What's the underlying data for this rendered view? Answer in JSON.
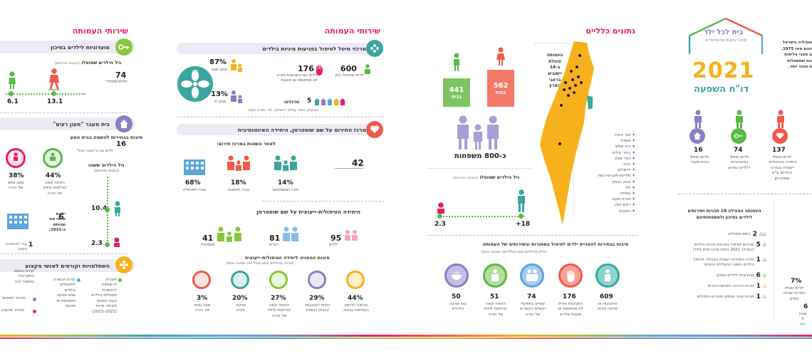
{
  "colors": {
    "pink": "#e91e63",
    "orange": "#f6b11c",
    "green": "#5aba47",
    "purple": "#8a7fc6",
    "blue": "#5aa6d8",
    "red": "#f05a4a",
    "teal": "#3aa6a0"
  },
  "panel1": {
    "header": "שירותי העמותה",
    "adopt": {
      "title": "מועדוניות לילדים בסיכון",
      "age_title": "גיל הילדים שטופלו",
      "age_note": "(בשנים וחודשים)",
      "kids_value": "74",
      "kids_label": "ילדים טופלו",
      "ages": [
        "6.1",
        "13.1"
      ]
    },
    "transit": {
      "title": "בית מעבר \"מעון רעים\"",
      "reasons_title": "סיבות בבחירות להשמה בבית המע",
      "sixteen": "16",
      "sixteen_label": "ילדים שהו ב\"מעון רעים\"",
      "pcts": [
        {
          "v": "38%",
          "l": "מצב נפשי\nשל הורה"
        },
        {
          "v": "44%",
          "l": "הזנחה קשה\n/אלימות פיזית\nשל הורה"
        }
      ],
      "age_title": "גיל הילדים ששהו",
      "age_note": "(בשנים וחודשים)",
      "age_a": "10.4",
      "age_b": "2.3",
      "six": "6",
      "six_label": "ילדים\nסיימו את\nשהותם\nב-2021:",
      "one": "1",
      "one_label": "עבר למשפחת\nאומנה"
    },
    "courses": {
      "title": "השתלמויות וקורסים לאנשי מקצוע",
      "items": [
        "תוכנית\nדו-שנתית\nלהכשרת\nמטפלים בילדים\nוגעת בנפגעי\nתקיפה מינית\n(2021–2023)",
        "קורס הכשרה\nלמטפלים\nבילדים\nשחוו פגיעה\nמאוטמת או\nמוגעת",
        "קורס בנושא\nהתערבות\nבמשבר (הכ"
      ],
      "side": [
        "תכנית 'תפסים'",
        "תכנית 'מהציגו"
      ]
    }
  },
  "panel2": {
    "header": "שירותי העמותה",
    "centers": {
      "title": "מרכזי מיטל לטיפול בפגיעות מיניות בילדים",
      "n600": "600",
      "l600": "ילדים שטופלו בגין",
      "n176": "176",
      "l176": "ילדים עם התנהגות מינית\nלא מותאמת או פוגעת",
      "pct87": "87%",
      "l87": "פגוע מגור",
      "pct13": "13%",
      "l13": "פגוע זר",
      "five": "5",
      "five_label": "מרכזים:",
      "cities": "אשקלון, ביתר עילית, ירושלים, לוד, מזרח תקוה"
    },
    "hub": {
      "title": "מרכז החירום על שם שוסטרמן, היחידה האינטנסיבית",
      "after_title": "לאחר השהות במרכז חירום:",
      "n42": "42",
      "l42": "ילדים טופלו\nבמרכז חירום –\nהיחידה האינטנסיבית",
      "items": [
        {
          "v": "14%",
          "l": "חזרו למשפחתם"
        },
        {
          "v": "18%",
          "l": "עברו לאומנה"
        },
        {
          "v": "68%",
          "l": "עברו לפנימייה"
        }
      ]
    },
    "therapeutic": {
      "title": "היחידה הטיפולית–ייעוצית על שם שוסטרמן",
      "n95": "95",
      "l95": "ילדים",
      "n81": "81",
      "l81": "הורים",
      "n41": "41",
      "l41": "משפחות",
      "reasons_title": "סיבות ההפניה ליחידה הטיפולית–ייעוצית",
      "reasons_note": "(הרבה מהילדים הופנו בגלל יותר מסיבה אחת)",
      "reasons": [
        {
          "v": "44%",
          "l": "טכסוכי גירושין\nבעצימות גבוהה"
        },
        {
          "v": "29%",
          "l": "בעיות התנהגות\n/בעיות רגשיות"
        },
        {
          "v": "27%",
          "l": "הזנחה קשה\n/אלימות פיזית\nשל הורה"
        },
        {
          "v": "20%",
          "l": "פגיעה\nמינית"
        },
        {
          "v": "3%",
          "l": "מצב נפשי\nשל הורה"
        }
      ]
    }
  },
  "panel3": {
    "header": "נתונים כלליים",
    "n441": "441",
    "l441": "בנים",
    "n562": "562",
    "l562": "בנות",
    "families": "כ-800 משפחות",
    "map_note": "העמותה\nפועלת\nב-14\nיישובים\nברחבי\nהארץ",
    "cities": [
      "אור יהודה",
      "אשדוד",
      "בית שמש",
      "ביתר עילית",
      "באר שבע",
      "יבנה",
      "ירושלים",
      "מודיעין-מכבים-רעות",
      "מטה בנימין",
      "לוד",
      "עפולה",
      "מזרח תקוה",
      "ראש העין",
      "רחובות"
    ],
    "age_title": "גיל הילדים שטופלו",
    "age_note": "(בשנים וחודשים)",
    "age_min": "2.3",
    "age_max": "+18",
    "reasons_title": "סיבות בבחירות להפניית ילדים לטיפול במסגרות ובשירותים של העמותה",
    "reasons_note": "(חלק מהילדים הופנו בגלל יותר מסיבה אחת)",
    "reasons": [
      {
        "v": "609",
        "l": "התנהגות או\nפגיעה מינית"
      },
      {
        "v": "176",
        "l": "התנהגות מינית\nלא מותאמת או\nפוגעת שלהם"
      },
      {
        "v": "74",
        "l": "קשיים בתפקוד\nוקשיים בקשרים\nשל הורה"
      },
      {
        "v": "51",
        "l": "הזנחה קשה\n/אלימות פיזית\nשל הורה"
      },
      {
        "v": "50",
        "l": "עוני וצוקה\nכלכלית"
      }
    ]
  },
  "panel4": {
    "logo_he": "בית לכל ילד",
    "logo_en": "A Home for Every Child",
    "year": "2021",
    "report": "דו\"ח השפעה",
    "intro": "מוביליה בישראל\nזהום מאז 1975.\nם מצבי אלימות\nנוח שמשפלות\nת טובה יותר.",
    "stats": [
      {
        "v": "137",
        "l": "ילדים טופלו\nביחידה הטיפולית–\nייעוצית ובמרכז\nהחירום ע\"ש\nשוסטרמן"
      },
      {
        "v": "74",
        "l": "ילדים טופלו\nבמועדוניות\nלילדים בסיכון"
      },
      {
        "v": "16",
        "l": "ילדים טופלו\nבבית מעבר"
      }
    ],
    "programs_title": "העמותה הפעילה 16 תכניות ושירותים\nלילדים בסיכון ולמשפחותיהם",
    "programs": [
      {
        "n": "2",
        "l": "בתים טיפוליים"
      },
      {
        "n": "5",
        "l": "מרכזים לטיפול בפגיעות מיניות בילדים\n(במהלך 2021 נפתח מרכז חדש בלוד)"
      },
      {
        "n": "1",
        "l": "יחידה טיפולית–ייעוצית בקהילה לטיפול\nבילדים במצבי התעללות והזנחה"
      },
      {
        "n": "6",
        "l": "מועדוניות לילדים בסיכון"
      },
      {
        "n": "1",
        "l": "תכנית הדרכה למניעת היגרים"
      },
      {
        "n": "1",
        "l": "תכנית עבור צוותים חינוכיים-טיפוליים"
      }
    ],
    "side_pct": "7%",
    "side_pct_label": "ילדים טופלו\nבמרכזי שהייה\nיומיים",
    "side_six": "6",
    "side_six_label": "שוהו\nת\nלת"
  }
}
